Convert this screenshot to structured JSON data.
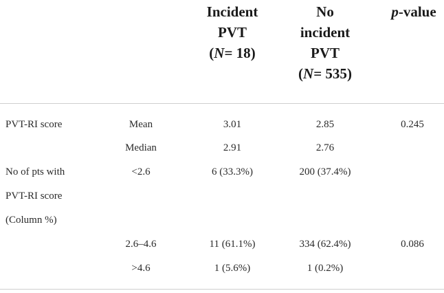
{
  "headers": {
    "incident": {
      "line1": "Incident",
      "line2": "PVT",
      "n_label": "N",
      "n_value": "= 18"
    },
    "no_incident": {
      "line1": "No",
      "line2": "incident",
      "line3": "PVT",
      "n_label": "N",
      "n_value": "= 535"
    },
    "pvalue": {
      "italic": "p",
      "rest": "-value"
    }
  },
  "rows": [
    {
      "label": "PVT-RI score",
      "stat": "Mean",
      "incident": "3.01",
      "no_incident": "2.85",
      "p": "0.245"
    },
    {
      "label": "",
      "stat": "Median",
      "incident": "2.91",
      "no_incident": "2.76",
      "p": ""
    },
    {
      "label": "No of pts with",
      "stat": "<2.6",
      "incident": "6 (33.3%)",
      "no_incident": "200 (37.4%)",
      "p": ""
    },
    {
      "label": "PVT-RI score",
      "stat": "",
      "incident": "",
      "no_incident": "",
      "p": ""
    },
    {
      "label": "(Column %)",
      "stat": "",
      "incident": "",
      "no_incident": "",
      "p": ""
    },
    {
      "label": "",
      "stat": "2.6–4.6",
      "incident": "11 (61.1%)",
      "no_incident": "334 (62.4%)",
      "p": "0.086"
    },
    {
      "label": "",
      "stat": ">4.6",
      "incident": "1 (5.6%)",
      "no_incident": "1 (0.2%)",
      "p": ""
    }
  ]
}
